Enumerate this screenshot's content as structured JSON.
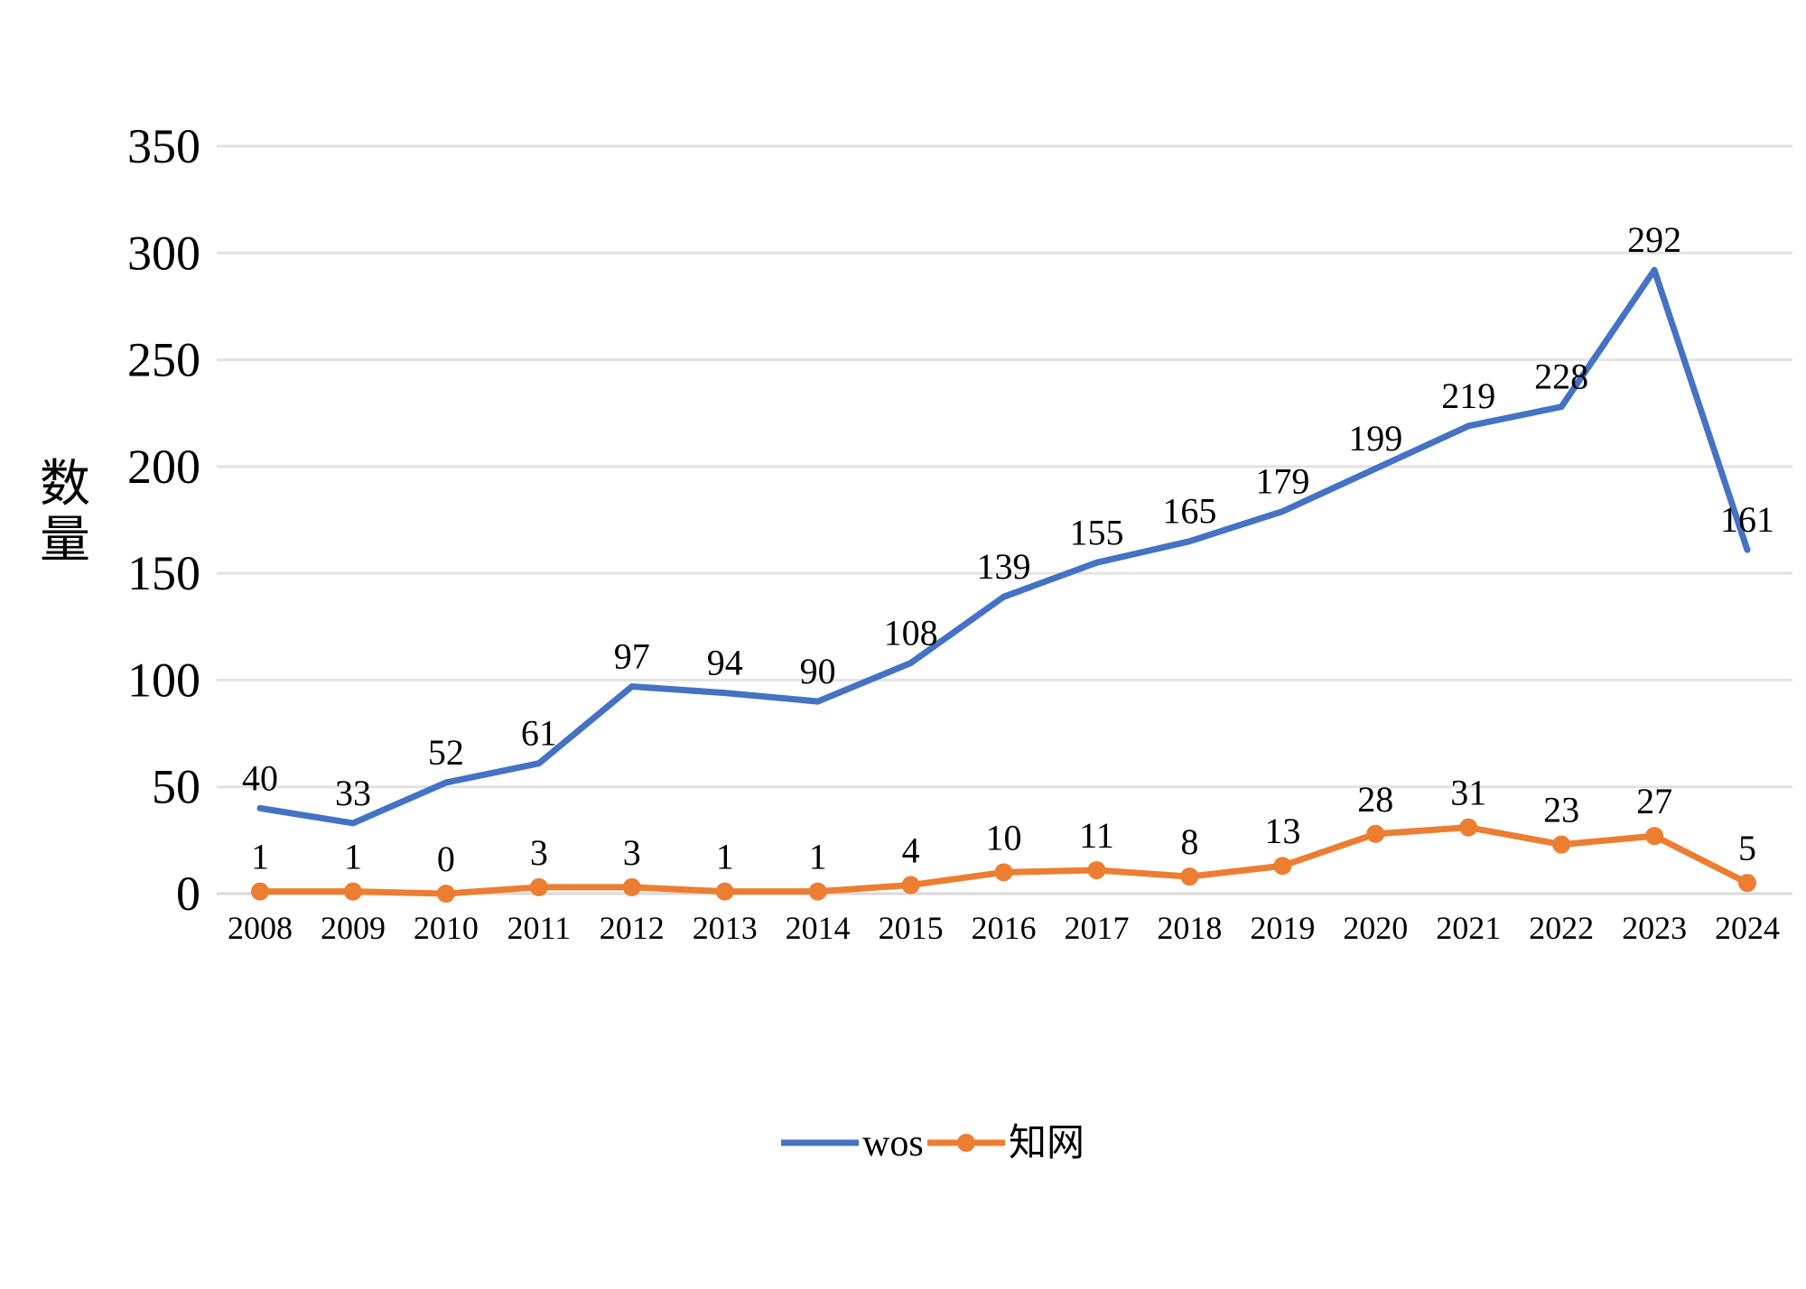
{
  "chart_data": {
    "type": "line",
    "title": "",
    "xlabel": "",
    "ylabel": "数量",
    "ylim": [
      0,
      350
    ],
    "yticks": [
      "0",
      "50",
      "100",
      "150",
      "200",
      "250",
      "300",
      "350"
    ],
    "grid": true,
    "legend_position": "bottom",
    "categories": [
      "2008",
      "2009",
      "2010",
      "2011",
      "2012",
      "2013",
      "2014",
      "2015",
      "2016",
      "2017",
      "2018",
      "2019",
      "2020",
      "2021",
      "2022",
      "2023",
      "2024"
    ],
    "series": [
      {
        "name": "wos",
        "color": "#4472C4",
        "marker": "none",
        "values": [
          40,
          33,
          52,
          61,
          97,
          94,
          90,
          108,
          139,
          155,
          165,
          179,
          199,
          219,
          228,
          292,
          161
        ],
        "labels": [
          "40",
          "33",
          "52",
          "61",
          "97",
          "94",
          "90",
          "108",
          "139",
          "155",
          "165",
          "179",
          "199",
          "219",
          "228",
          "292",
          "161"
        ]
      },
      {
        "name": "知网",
        "color": "#ED7D31",
        "marker": "circle",
        "values": [
          1,
          1,
          0,
          3,
          3,
          1,
          1,
          4,
          10,
          11,
          8,
          13,
          28,
          31,
          23,
          27,
          5
        ],
        "labels": [
          "1",
          "1",
          "0",
          "3",
          "3",
          "1",
          "1",
          "4",
          "10",
          "11",
          "8",
          "13",
          "28",
          "31",
          "23",
          "27",
          "5"
        ]
      }
    ]
  }
}
